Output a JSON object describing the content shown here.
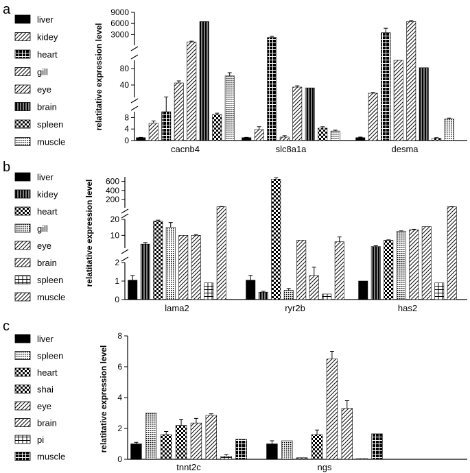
{
  "chart_data": [
    {
      "panel": "a",
      "type": "bar",
      "ylabel": "relatitative expression level",
      "categories": [
        "cacnb4",
        "slc8a1a",
        "desma"
      ],
      "broken_axis": {
        "segments": [
          [
            0,
            10
          ],
          [
            0,
            100
          ],
          [
            0,
            9000
          ]
        ]
      },
      "yticks": [
        {
          "label": "0",
          "value": 0
        },
        {
          "label": "4",
          "value": 4
        },
        {
          "label": "8",
          "value": 8
        },
        {
          "label": "40",
          "value": 40
        },
        {
          "label": "80",
          "value": 80
        },
        {
          "label": "3000",
          "value": 3000
        },
        {
          "label": "6000",
          "value": 6000
        },
        {
          "label": "9000",
          "value": 9000
        }
      ],
      "series": [
        {
          "name": "liver",
          "pattern": "solid",
          "values": [
            1.0,
            1.0,
            1.0
          ],
          "errors": [
            0.1,
            0.1,
            0.2
          ]
        },
        {
          "name": "kidey",
          "pattern": "diag",
          "values": [
            6.0,
            3.8,
            20
          ],
          "errors": [
            0.8,
            1.0,
            2
          ]
        },
        {
          "name": "heart",
          "pattern": "grid",
          "values": [
            10,
            2200,
            3500
          ],
          "errors": [
            1,
            300,
            1200
          ]
        },
        {
          "name": "gill",
          "pattern": "diag",
          "values": [
            45,
            1.2,
            100
          ],
          "errors": [
            5,
            0.5,
            0
          ]
        },
        {
          "name": "eye",
          "pattern": "diag",
          "values": [
            1000,
            35,
            6500
          ],
          "errors": [
            200,
            3,
            300
          ]
        },
        {
          "name": "brain",
          "pattern": "vert",
          "values": [
            6500,
            33,
            82
          ],
          "errors": [
            0,
            0,
            0
          ]
        },
        {
          "name": "spleen",
          "pattern": "checker",
          "values": [
            9.0,
            4.3,
            0.8
          ],
          "errors": [
            0.5,
            0.5,
            0.2
          ]
        },
        {
          "name": "muscle",
          "pattern": "dots",
          "values": [
            62,
            3.3,
            7.5
          ],
          "errors": [
            8,
            0.3,
            0.3
          ]
        }
      ]
    },
    {
      "panel": "b",
      "type": "bar",
      "ylabel": "relatitative expression level",
      "categories": [
        "lama2",
        "ryr2b",
        "has2"
      ],
      "broken_axis": {
        "segments": [
          [
            0,
            2
          ],
          [
            0,
            20
          ],
          [
            0,
            700
          ]
        ]
      },
      "yticks": [
        {
          "label": "0",
          "value": 0
        },
        {
          "label": "1",
          "value": 1
        },
        {
          "label": "2",
          "value": 2
        },
        {
          "label": "10",
          "value": 10
        },
        {
          "label": "20",
          "value": 20
        },
        {
          "label": "200",
          "value": 200
        },
        {
          "label": "400",
          "value": 400
        },
        {
          "label": "600",
          "value": 600
        }
      ],
      "series": [
        {
          "name": "liver",
          "pattern": "solid",
          "values": [
            1.05,
            1.05,
            1.0
          ],
          "errors": [
            0.25,
            0.25,
            0
          ]
        },
        {
          "name": "kidey",
          "pattern": "vert",
          "values": [
            4.5,
            0.4,
            3
          ],
          "errors": [
            1,
            0.05,
            0.5
          ]
        },
        {
          "name": "heart",
          "pattern": "checker",
          "values": [
            19,
            650,
            7
          ],
          "errors": [
            0.5,
            30,
            0.2
          ]
        },
        {
          "name": "gill",
          "pattern": "dots",
          "values": [
            15,
            0.5,
            12.5
          ],
          "errors": [
            3,
            0.1,
            0.3
          ]
        },
        {
          "name": "eye",
          "pattern": "diag",
          "values": [
            10,
            7,
            13.5
          ],
          "errors": [
            0,
            0,
            0.3
          ]
        },
        {
          "name": "brain",
          "pattern": "diag",
          "values": [
            10,
            1.3,
            15.5
          ],
          "errors": [
            0.5,
            0.45,
            0
          ]
        },
        {
          "name": "spleen",
          "pattern": "hgrid",
          "values": [
            0.9,
            0.3,
            0.9
          ],
          "errors": [
            0,
            0,
            0
          ]
        },
        {
          "name": "muscle",
          "pattern": "diag",
          "values": [
            40,
            6,
            40
          ],
          "errors": [
            5,
            3,
            2
          ]
        }
      ]
    },
    {
      "panel": "c",
      "type": "bar",
      "ylabel": "relatitative expression level",
      "categories": [
        "tnnt2c",
        "ngs"
      ],
      "ylim": [
        0,
        8
      ],
      "yticks": [
        {
          "label": "0",
          "value": 0
        },
        {
          "label": "2",
          "value": 2
        },
        {
          "label": "4",
          "value": 4
        },
        {
          "label": "6",
          "value": 6
        },
        {
          "label": "8",
          "value": 8
        }
      ],
      "series": [
        {
          "name": "liver",
          "pattern": "solid",
          "values": [
            1.0,
            1.0
          ],
          "errors": [
            0.1,
            0.2
          ]
        },
        {
          "name": "spleen",
          "pattern": "dots",
          "values": [
            3.0,
            1.2
          ],
          "errors": [
            0,
            0
          ]
        },
        {
          "name": "heart",
          "pattern": "checker",
          "values": [
            1.6,
            0.1
          ],
          "errors": [
            0.2,
            0
          ]
        },
        {
          "name": "shai",
          "pattern": "checker",
          "values": [
            2.2,
            1.6
          ],
          "errors": [
            0.4,
            0.3
          ]
        },
        {
          "name": "eye",
          "pattern": "diag",
          "values": [
            2.35,
            6.5
          ],
          "errors": [
            0.3,
            0.5
          ]
        },
        {
          "name": "brain",
          "pattern": "diag",
          "values": [
            2.85,
            3.3
          ],
          "errors": [
            0.1,
            0.5
          ]
        },
        {
          "name": "pi",
          "pattern": "hgrid",
          "values": [
            0.2,
            0.05
          ],
          "errors": [
            0.1,
            0
          ]
        },
        {
          "name": "muscle",
          "pattern": "grid",
          "values": [
            1.3,
            1.65
          ],
          "errors": [
            0,
            0
          ]
        }
      ]
    }
  ]
}
